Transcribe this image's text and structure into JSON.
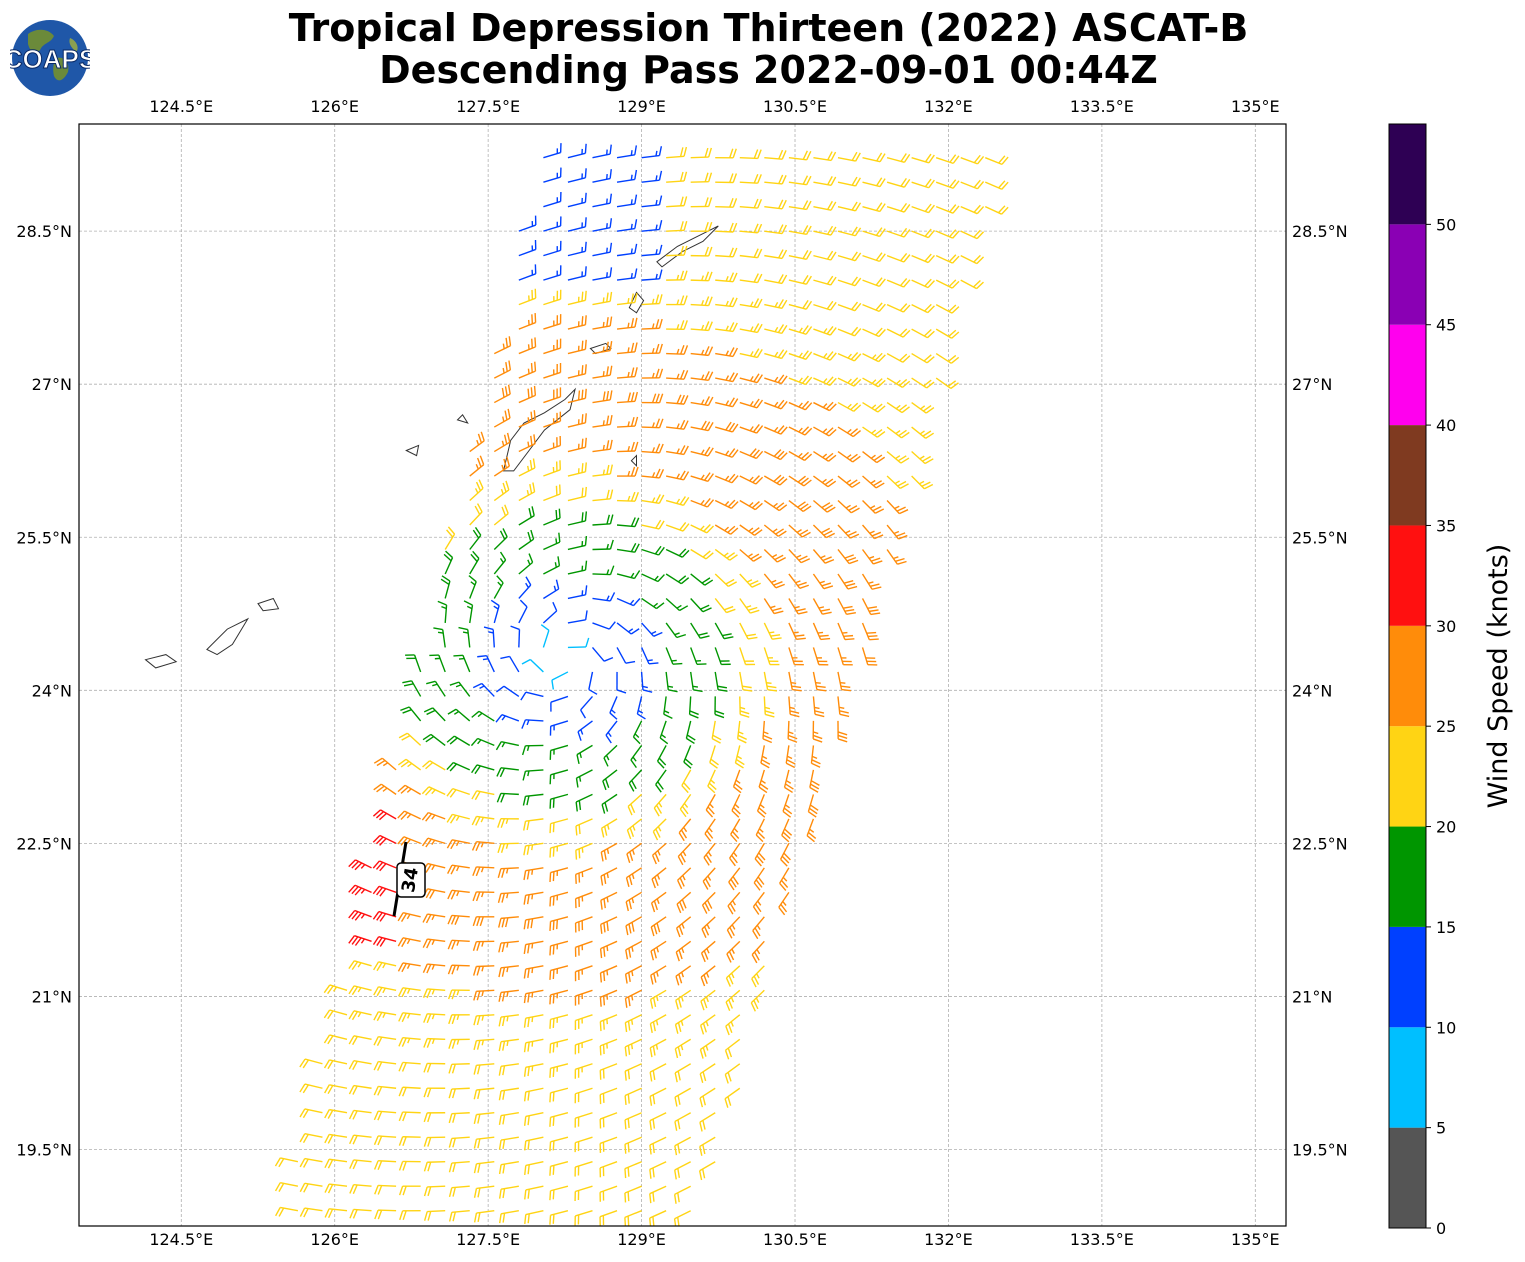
{
  "title": {
    "line1": "Tropical Depression Thirteen (2022) ASCAT-B",
    "line2": "Descending Pass 2022-09-01 00:44Z"
  },
  "logo": {
    "text": "COAPS",
    "icon": "globe-icon"
  },
  "map": {
    "lon_range": [
      123.5,
      135.3
    ],
    "lat_range": [
      18.75,
      29.55
    ],
    "lon_ticks": [
      "124.5°E",
      "126°E",
      "127.5°E",
      "129°E",
      "130.5°E",
      "132°E",
      "133.5°E",
      "135°E"
    ],
    "lat_ticks": [
      "28.5°N",
      "27°N",
      "25.5°N",
      "24°N",
      "22.5°N",
      "21°N",
      "19.5°N"
    ],
    "gridlines": true,
    "storm_marker": {
      "label": "34",
      "lon": 126.75,
      "lat": 22.2
    }
  },
  "colorbar": {
    "label": "Wind Speed (knots)",
    "tick_labels": [
      "0",
      "5",
      "10",
      "15",
      "20",
      "25",
      "30",
      "35",
      "40",
      "45",
      "50"
    ],
    "bins": [
      {
        "from": 0,
        "to": 5,
        "color": "#555555"
      },
      {
        "from": 5,
        "to": 10,
        "color": "#00bfff"
      },
      {
        "from": 10,
        "to": 15,
        "color": "#0040ff"
      },
      {
        "from": 15,
        "to": 20,
        "color": "#009600"
      },
      {
        "from": 20,
        "to": 25,
        "color": "#ffd414"
      },
      {
        "from": 25,
        "to": 30,
        "color": "#ff8c0a"
      },
      {
        "from": 30,
        "to": 35,
        "color": "#ff1010"
      },
      {
        "from": 35,
        "to": 40,
        "color": "#7f3a20"
      },
      {
        "from": 40,
        "to": 45,
        "color": "#ff00ee"
      },
      {
        "from": 45,
        "to": 50,
        "color": "#8a00b4"
      },
      {
        "from": 50,
        "to": 55,
        "color": "#2e0054"
      }
    ]
  },
  "chart_data": {
    "type": "wind-barb-map",
    "units": "knots",
    "center": {
      "lon": 128.25,
      "lat": 24.3
    },
    "islands": [
      {
        "name": "",
        "lonlat": [
          [
            127.65,
            26.15
          ],
          [
            127.72,
            26.45
          ],
          [
            127.85,
            26.62
          ],
          [
            128.05,
            26.72
          ],
          [
            128.25,
            26.85
          ],
          [
            128.35,
            26.95
          ],
          [
            128.3,
            26.75
          ],
          [
            128.05,
            26.55
          ],
          [
            127.9,
            26.35
          ],
          [
            127.75,
            26.15
          ]
        ]
      },
      {
        "name": "",
        "lonlat": [
          [
            129.15,
            28.2
          ],
          [
            129.35,
            28.35
          ],
          [
            129.65,
            28.5
          ],
          [
            129.75,
            28.55
          ],
          [
            129.6,
            28.4
          ],
          [
            129.4,
            28.3
          ],
          [
            129.2,
            28.15
          ]
        ]
      },
      {
        "name": "",
        "lonlat": [
          [
            128.88,
            27.75
          ],
          [
            128.95,
            27.9
          ],
          [
            129.02,
            27.82
          ],
          [
            128.95,
            27.7
          ]
        ]
      },
      {
        "name": "",
        "lonlat": [
          [
            128.5,
            27.35
          ],
          [
            128.65,
            27.4
          ],
          [
            128.7,
            27.35
          ],
          [
            128.55,
            27.3
          ]
        ]
      },
      {
        "name": "",
        "lonlat": [
          [
            126.7,
            26.35
          ],
          [
            126.82,
            26.4
          ],
          [
            126.8,
            26.3
          ]
        ]
      },
      {
        "name": "",
        "lonlat": [
          [
            124.15,
            24.3
          ],
          [
            124.35,
            24.35
          ],
          [
            124.45,
            24.28
          ],
          [
            124.25,
            24.22
          ]
        ]
      },
      {
        "name": "",
        "lonlat": [
          [
            124.75,
            24.4
          ],
          [
            124.95,
            24.6
          ],
          [
            125.15,
            24.7
          ],
          [
            125.0,
            24.45
          ],
          [
            124.85,
            24.35
          ]
        ]
      },
      {
        "name": "",
        "lonlat": [
          [
            125.25,
            24.85
          ],
          [
            125.4,
            24.9
          ],
          [
            125.45,
            24.8
          ],
          [
            125.3,
            24.78
          ]
        ]
      },
      {
        "name": "",
        "lonlat": [
          [
            128.9,
            26.25
          ],
          [
            128.95,
            26.3
          ],
          [
            128.95,
            26.2
          ]
        ]
      },
      {
        "name": "",
        "lonlat": [
          [
            127.2,
            26.65
          ],
          [
            127.25,
            26.7
          ],
          [
            127.3,
            26.62
          ]
        ]
      }
    ]
  }
}
